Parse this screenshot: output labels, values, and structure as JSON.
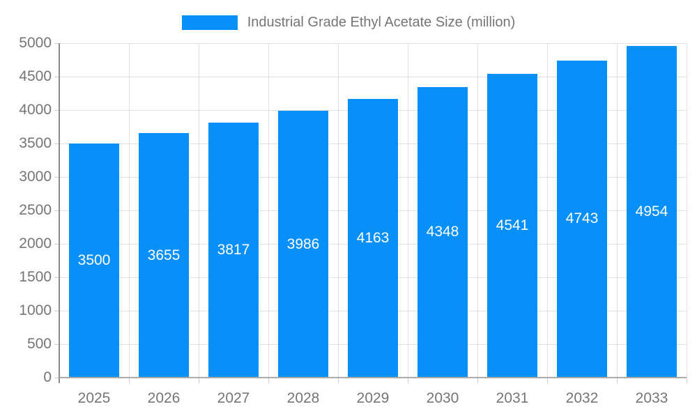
{
  "chart_data": {
    "type": "bar",
    "title": "Industrial Grade Ethyl Acetate Size (million)",
    "legend": {
      "label": "Industrial Grade Ethyl Acetate Size (million)",
      "position": "top"
    },
    "categories": [
      "2025",
      "2026",
      "2027",
      "2028",
      "2029",
      "2030",
      "2031",
      "2032",
      "2033"
    ],
    "values": [
      3500,
      3655,
      3817,
      3986,
      4163,
      4348,
      4541,
      4743,
      4954
    ],
    "value_labels_shown": true,
    "xlabel": "",
    "ylabel": "",
    "ylim": [
      0,
      5000
    ],
    "ytick_step": 500,
    "yticks": [
      0,
      500,
      1000,
      1500,
      2000,
      2500,
      3000,
      3500,
      4000,
      4500,
      5000
    ],
    "grid": true,
    "colors": {
      "bar": "#0890F8",
      "value_label": "#FFFFFF",
      "grid": "#E0E0E0",
      "tick": "#CCCCCC",
      "axis_line": "#8C8C8C",
      "baseline": "#ABABAB",
      "text": "#757575",
      "background": "#FFFFFF"
    }
  }
}
